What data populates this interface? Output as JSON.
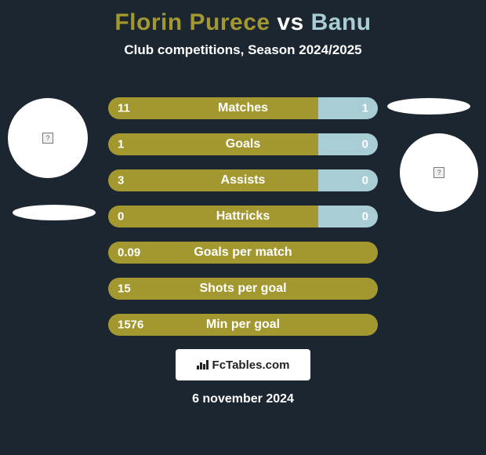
{
  "background_color": "#1c2630",
  "title": {
    "player1": "Florin Purece",
    "vs": " vs ",
    "player2": "Banu",
    "player1_color": "#a39830",
    "vs_color": "#ffffff",
    "player2_color": "#a9cdd4",
    "fontsize": 30
  },
  "subtitle": "Club competitions, Season 2024/2025",
  "colors": {
    "left_bar": "#a39830",
    "right_bar": "#a9cdd4",
    "bar_border_radius": 14,
    "text": "#ffffff"
  },
  "bars": [
    {
      "label": "Matches",
      "left": "11",
      "right": "1",
      "left_pct": 78,
      "right_pct": 22
    },
    {
      "label": "Goals",
      "left": "1",
      "right": "0",
      "left_pct": 78,
      "right_pct": 22
    },
    {
      "label": "Assists",
      "left": "3",
      "right": "0",
      "left_pct": 78,
      "right_pct": 22
    },
    {
      "label": "Hattricks",
      "left": "0",
      "right": "0",
      "left_pct": 78,
      "right_pct": 22
    },
    {
      "label": "Goals per match",
      "left": "0.09",
      "right": "",
      "left_pct": 100,
      "right_pct": 0
    },
    {
      "label": "Shots per goal",
      "left": "15",
      "right": "",
      "left_pct": 100,
      "right_pct": 0
    },
    {
      "label": "Min per goal",
      "left": "1576",
      "right": "",
      "left_pct": 100,
      "right_pct": 0
    }
  ],
  "footer_brand": "FcTables.com",
  "date": "6 november 2024"
}
